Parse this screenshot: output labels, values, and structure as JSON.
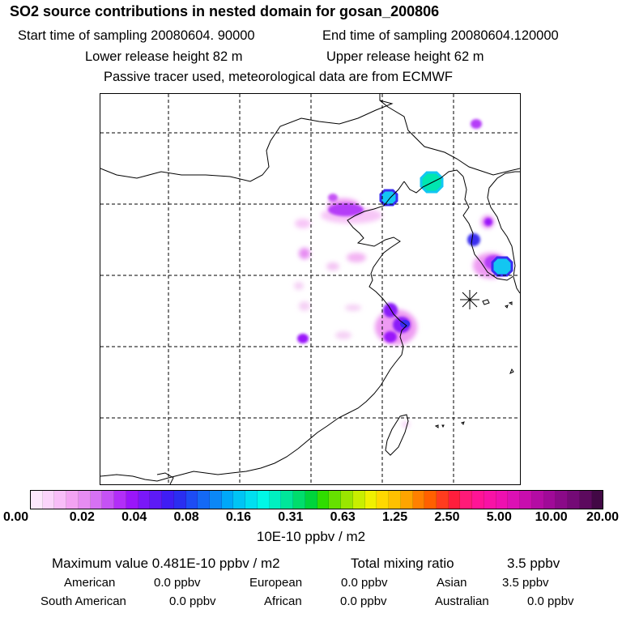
{
  "header": {
    "title": "SO2 source contributions in nested domain for gosan_200806",
    "start_time": "Start time of sampling 20080604. 90000",
    "end_time": "End time of sampling 20080604.120000",
    "lower_release": "Lower release height   82 m",
    "upper_release": "Upper release height   62 m",
    "note": "Passive tracer used, meteorological data are from ECMWF"
  },
  "colorbar": {
    "ticks": [
      "0.00",
      "0.02",
      "0.04",
      "0.08",
      "0.16",
      "0.31",
      "0.63",
      "1.25",
      "2.50",
      "5.00",
      "10.00",
      "20.00"
    ],
    "colors": [
      "#fde8fd",
      "#fbd4fb",
      "#f8bdf8",
      "#f3a3f3",
      "#e68cf2",
      "#d671f3",
      "#c552f5",
      "#b22ef8",
      "#9a16fa",
      "#7a18f8",
      "#5d1af6",
      "#3f1df4",
      "#2a2ef0",
      "#1d4cf4",
      "#1469f5",
      "#0b87f6",
      "#00a8f8",
      "#00c4f4",
      "#00dff0",
      "#00f7e6",
      "#00f0c0",
      "#00e69a",
      "#00dd6c",
      "#00d43c",
      "#30dc00",
      "#66e000",
      "#9ae600",
      "#c8ee00",
      "#f0f000",
      "#ffd800",
      "#ffc000",
      "#ffa400",
      "#ff8000",
      "#ff6000",
      "#ff3c1e",
      "#ff1e3c",
      "#ff1a78",
      "#ff1496",
      "#f812a6",
      "#ee10b0",
      "#dc10b4",
      "#c80eae",
      "#b40ca4",
      "#a00a98",
      "#8a0a88",
      "#740a76",
      "#5c0a5e",
      "#420845"
    ],
    "units": "10E-10 ppbv / m2"
  },
  "stats": {
    "max_label": "Maximum value  0.481E-10 ppbv / m2",
    "total_label": "Total mixing ratio",
    "total_value": "3.5 ppbv",
    "regions": [
      {
        "name": "American",
        "value": "0.0 ppbv"
      },
      {
        "name": "European",
        "value": "0.0 ppbv"
      },
      {
        "name": "Asian",
        "value": "3.5 ppbv"
      },
      {
        "name": "South American",
        "value": "0.0 ppbv"
      },
      {
        "name": "African",
        "value": "0.0 ppbv"
      },
      {
        "name": "Australian",
        "value": "0.0 ppbv"
      }
    ]
  },
  "map": {
    "receptor_marker": "asterisk",
    "blob_colors": {
      "faint": "#f7c6f7",
      "light": "#ee9bf2",
      "violet": "#b53cf8",
      "purple": "#8a1ff8",
      "blue": "#3a2ef0",
      "cyan": "#13c6f2",
      "teal": "#00e6b0"
    }
  }
}
